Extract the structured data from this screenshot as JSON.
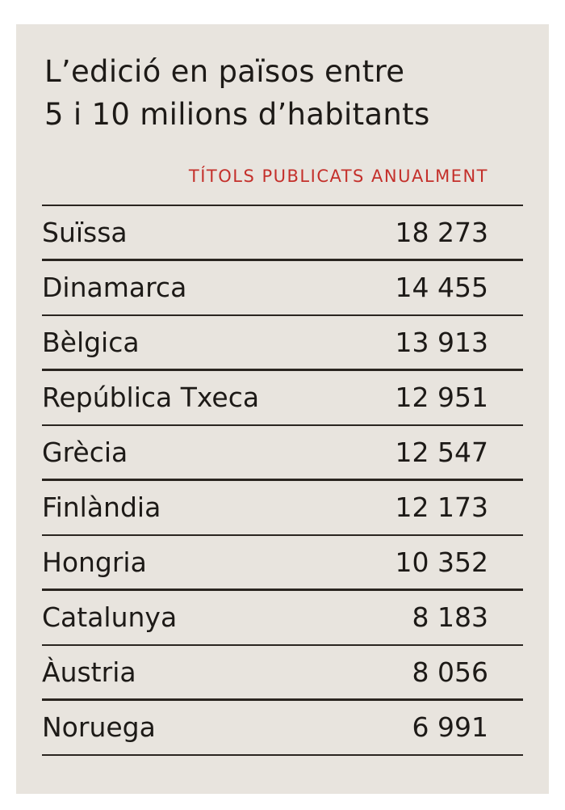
{
  "header": {
    "title_lines": [
      "L’edició en països entre",
      "5 i 10 milions d’habitants"
    ],
    "column_label": "TÍTOLS PUBLICATS ANUALMENT"
  },
  "table": {
    "rows": [
      [
        "Suïssa",
        "18 273"
      ],
      [
        "Dinamarca",
        "14 455"
      ],
      [
        "Bèlgica",
        "13 913"
      ],
      [
        "República Txeca",
        "12 951"
      ],
      [
        "Grècia",
        "12 547"
      ],
      [
        "Finlàndia",
        "12 173"
      ],
      [
        "Hongria",
        "10 352"
      ],
      [
        "Catalunya",
        "8 183"
      ],
      [
        "Àustria",
        "8 056"
      ],
      [
        "Noruega",
        "6 991"
      ]
    ]
  }
}
